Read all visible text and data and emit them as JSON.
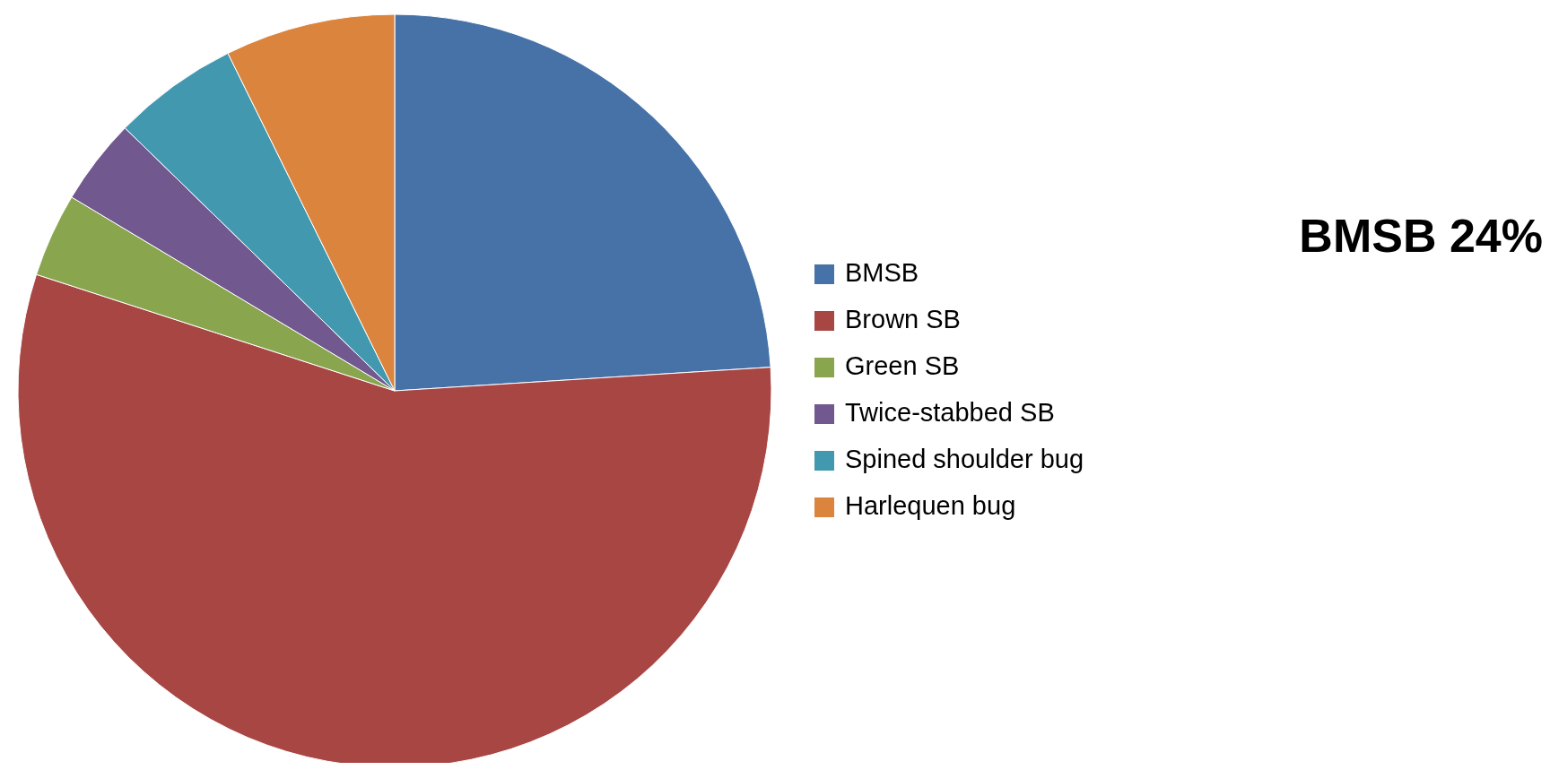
{
  "chart_data": {
    "type": "pie",
    "categories": [
      "BMSB",
      "Brown SB",
      "Green SB",
      "Twice-stabbed SB",
      "Spined shoulder bug",
      "Harlequen bug"
    ],
    "values": [
      24,
      56,
      3.6,
      3.7,
      5.4,
      7.3
    ],
    "colors": [
      "#4672a8",
      "#a84644",
      "#89a54e",
      "#71588f",
      "#4198af",
      "#db843d"
    ],
    "annotations": [
      "BMSB 24%"
    ],
    "legend": "right"
  }
}
